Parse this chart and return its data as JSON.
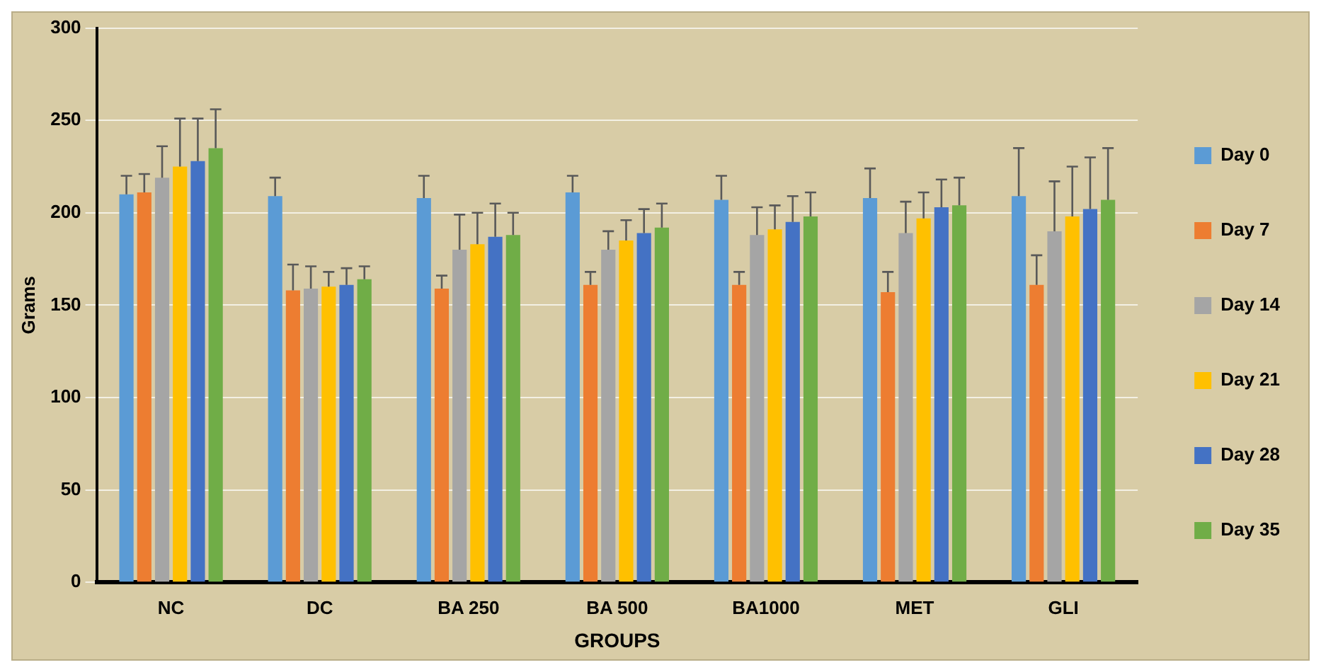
{
  "chart_data": {
    "type": "bar",
    "xlabel": "GROUPS",
    "ylabel": "Grams",
    "categories": [
      "NC",
      "DC",
      "BA 250",
      "BA 500",
      "BA1000",
      "MET",
      "GLI"
    ],
    "series": [
      {
        "name": "Day 0",
        "color": "#5b9bd5",
        "values": [
          210,
          209,
          208,
          211,
          207,
          208,
          209
        ],
        "errors": [
          [
            210,
            220
          ],
          [
            209,
            219
          ],
          [
            208,
            220
          ],
          [
            211,
            220
          ],
          [
            207,
            220
          ],
          [
            208,
            224
          ],
          [
            209,
            235
          ]
        ]
      },
      {
        "name": "Day 7",
        "color": "#ed7d31",
        "values": [
          211,
          158,
          159,
          161,
          161,
          157,
          161
        ],
        "errors": [
          [
            211,
            221
          ],
          [
            158,
            172
          ],
          [
            159,
            166
          ],
          [
            161,
            168
          ],
          [
            161,
            168
          ],
          [
            157,
            168
          ],
          [
            161,
            177
          ]
        ]
      },
      {
        "name": "Day 14",
        "color": "#a5a5a5",
        "values": [
          219,
          159,
          180,
          180,
          188,
          189,
          190
        ],
        "errors": [
          [
            219,
            236
          ],
          [
            159,
            171
          ],
          [
            180,
            199
          ],
          [
            180,
            190
          ],
          [
            188,
            203
          ],
          [
            189,
            206
          ],
          [
            190,
            217
          ]
        ]
      },
      {
        "name": "Day 21",
        "color": "#ffc000",
        "values": [
          225,
          160,
          183,
          185,
          191,
          197,
          198
        ],
        "errors": [
          [
            225,
            251
          ],
          [
            160,
            168
          ],
          [
            183,
            200
          ],
          [
            185,
            196
          ],
          [
            191,
            204
          ],
          [
            197,
            211
          ],
          [
            198,
            225
          ]
        ]
      },
      {
        "name": "Day 28",
        "color": "#4472c4",
        "values": [
          228,
          161,
          187,
          189,
          195,
          203,
          202
        ],
        "errors": [
          [
            228,
            251
          ],
          [
            161,
            170
          ],
          [
            187,
            205
          ],
          [
            189,
            202
          ],
          [
            195,
            209
          ],
          [
            203,
            218
          ],
          [
            202,
            230
          ]
        ]
      },
      {
        "name": "Day 35",
        "color": "#70ad47",
        "values": [
          235,
          164,
          188,
          192,
          198,
          204,
          207
        ],
        "errors": [
          [
            235,
            256
          ],
          [
            164,
            171
          ],
          [
            188,
            200
          ],
          [
            192,
            205
          ],
          [
            198,
            211
          ],
          [
            204,
            219
          ],
          [
            207,
            235
          ]
        ]
      }
    ],
    "ylim": [
      0,
      300
    ],
    "yticks": [
      0,
      50,
      100,
      150,
      200,
      250,
      300
    ],
    "grid": "y",
    "legend": "right"
  }
}
